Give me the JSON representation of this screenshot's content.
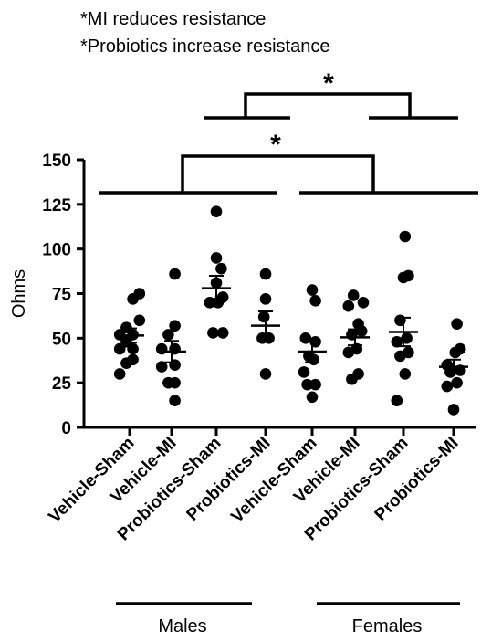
{
  "notes": [
    "*MI reduces resistance",
    "*Probiotics increase resistance"
  ],
  "chart_data": {
    "type": "scatter",
    "title": "",
    "xlabel": "",
    "ylabel": "Ohms",
    "ylim": [
      0,
      150
    ],
    "yticks": [
      0,
      25,
      50,
      75,
      100,
      125,
      150
    ],
    "grid": false,
    "legend": "none",
    "categories": [
      "Vehicle-Sham",
      "Vehicle-MI",
      "Probiotics-Sham",
      "Probiotics-MI",
      "Vehicle-Sham",
      "Vehicle-MI",
      "Probiotics-Sham",
      "Probiotics-MI"
    ],
    "groups": [
      {
        "label": "Males",
        "categories": [
          0,
          1,
          2,
          3
        ]
      },
      {
        "label": "Females",
        "categories": [
          4,
          5,
          6,
          7
        ]
      }
    ],
    "series": [
      {
        "points": [
          [
            -0.3,
            30
          ],
          [
            -0.1,
            36
          ],
          [
            0.1,
            38
          ],
          [
            -0.3,
            44
          ],
          [
            0.1,
            44
          ],
          [
            -0.1,
            48
          ],
          [
            -0.3,
            52
          ],
          [
            0.1,
            52
          ],
          [
            -0.1,
            56
          ],
          [
            0.3,
            60
          ],
          [
            0.1,
            72
          ],
          [
            0.3,
            75
          ]
        ],
        "mean": 51.5,
        "sem": 4
      },
      {
        "points": [
          [
            0.1,
            15
          ],
          [
            -0.1,
            25
          ],
          [
            0.1,
            25
          ],
          [
            -0.3,
            34
          ],
          [
            0.1,
            35
          ],
          [
            -0.3,
            44
          ],
          [
            0.1,
            44
          ],
          [
            -0.1,
            52
          ],
          [
            0.1,
            57
          ],
          [
            0.1,
            86
          ]
        ],
        "mean": 42.5,
        "sem": 6
      },
      {
        "points": [
          [
            -0.1,
            53
          ],
          [
            0.2,
            53
          ],
          [
            -0.2,
            70
          ],
          [
            0.05,
            70
          ],
          [
            0.2,
            73
          ],
          [
            0,
            81
          ],
          [
            0.15,
            89
          ],
          [
            0,
            95
          ],
          [
            0,
            121
          ]
        ],
        "mean": 78,
        "sem": 7
      },
      {
        "points": [
          [
            0,
            30
          ],
          [
            -0.1,
            50
          ],
          [
            0.1,
            50
          ],
          [
            -0.05,
            62
          ],
          [
            0,
            72
          ],
          [
            0,
            86
          ]
        ],
        "mean": 57,
        "sem": 8
      },
      {
        "points": [
          [
            0,
            17
          ],
          [
            -0.15,
            24
          ],
          [
            0.1,
            24
          ],
          [
            -0.25,
            31
          ],
          [
            0.05,
            38
          ],
          [
            -0.1,
            40
          ],
          [
            0.1,
            48
          ],
          [
            -0.2,
            50
          ],
          [
            0.1,
            71
          ],
          [
            0,
            77
          ]
        ],
        "mean": 42.5,
        "sem": 6
      },
      {
        "points": [
          [
            -0.1,
            27
          ],
          [
            0.1,
            30
          ],
          [
            -0.2,
            42
          ],
          [
            0.05,
            44
          ],
          [
            -0.1,
            52
          ],
          [
            0.2,
            54
          ],
          [
            0.1,
            58
          ],
          [
            -0.2,
            68
          ],
          [
            0.25,
            70
          ],
          [
            -0.05,
            74
          ]
        ],
        "mean": 50.5,
        "sem": 4.5
      },
      {
        "points": [
          [
            -0.2,
            15
          ],
          [
            0.05,
            30
          ],
          [
            -0.1,
            40
          ],
          [
            0.15,
            42
          ],
          [
            -0.2,
            48
          ],
          [
            0.1,
            50
          ],
          [
            -0.1,
            60
          ],
          [
            0,
            84
          ],
          [
            0.15,
            85
          ],
          [
            0.05,
            107
          ]
        ],
        "mean": 53.5,
        "sem": 8
      },
      {
        "points": [
          [
            0,
            10
          ],
          [
            -0.2,
            23
          ],
          [
            0.1,
            25
          ],
          [
            -0.1,
            31
          ],
          [
            0.2,
            32
          ],
          [
            -0.2,
            35
          ],
          [
            0.05,
            42
          ],
          [
            0.2,
            44
          ],
          [
            0.1,
            58
          ]
        ],
        "mean": 34,
        "sem": 4
      }
    ],
    "annotations": [
      {
        "text": "*",
        "between": "Males vs Females"
      },
      {
        "text": "*",
        "between": "Sham vs MI"
      }
    ]
  }
}
